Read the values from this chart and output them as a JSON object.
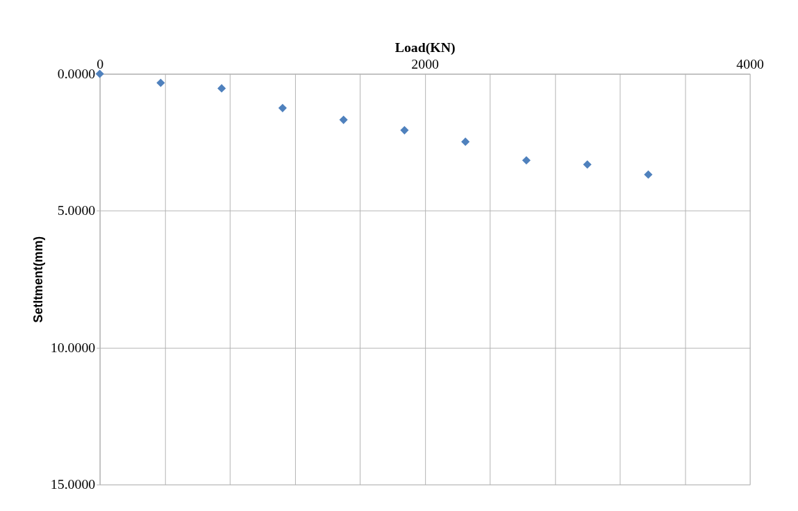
{
  "chart_data": {
    "type": "scatter",
    "xlabel": "Load(KN)",
    "ylabel": "Setltment(mm)",
    "x": [
      0,
      375,
      750,
      1125,
      1500,
      1875,
      2250,
      2625,
      3000,
      3375
    ],
    "series": [
      {
        "color": "#4f81bd",
        "values": [
          0,
          0.33,
          0.53,
          1.25,
          1.68,
          2.06,
          2.48,
          3.16,
          3.31,
          3.68
        ]
      }
    ],
    "xlim": [
      0,
      4000
    ],
    "xticks": [
      0,
      {
        "value": 400,
        "label": null
      },
      {
        "value": 800,
        "label": null
      },
      {
        "value": 1200,
        "label": null
      },
      {
        "value": 1600,
        "label": null
      },
      2000,
      {
        "value": 2400,
        "label": null
      },
      {
        "value": 2800,
        "label": null
      },
      {
        "value": 3200,
        "label": null
      },
      {
        "value": 3600,
        "label": null
      },
      4000
    ],
    "ylim": [
      15,
      0
    ],
    "yticks": [
      {
        "value": 0,
        "label": "0.0000"
      },
      {
        "value": 5,
        "label": "5.0000"
      },
      {
        "value": 10,
        "label": "10.0000"
      },
      {
        "value": 15,
        "label": "15.0000"
      }
    ],
    "grid": true,
    "marker": "diamond"
  }
}
